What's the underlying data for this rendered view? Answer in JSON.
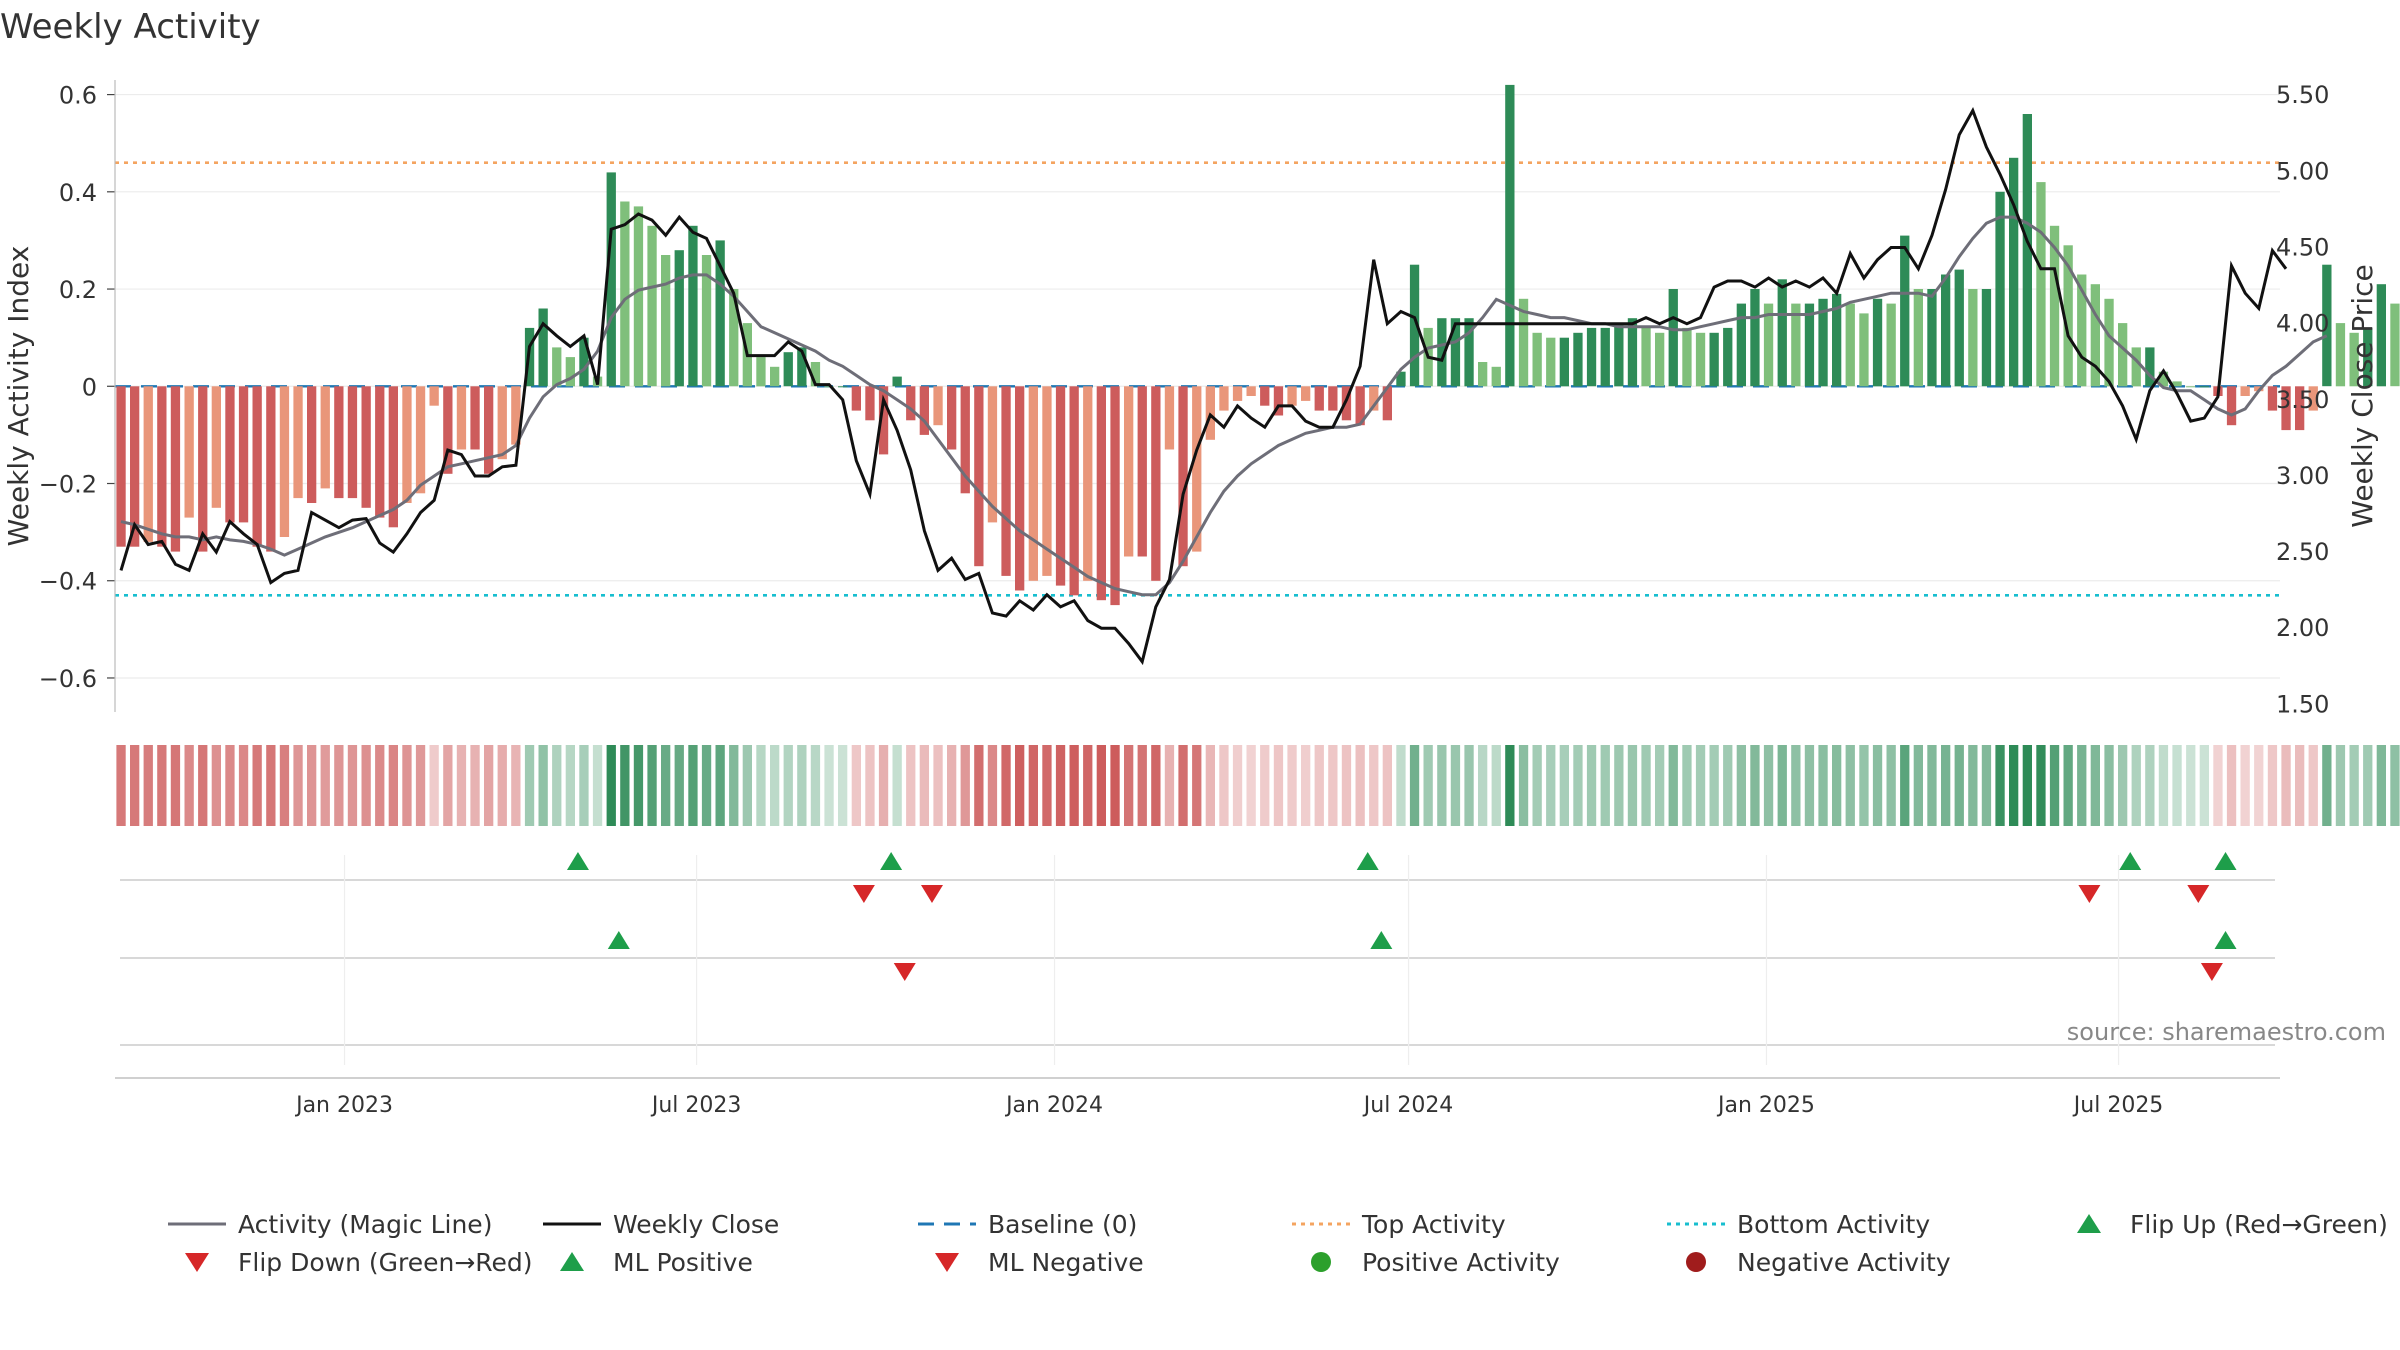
{
  "title": "Weekly Activity",
  "source_note": "source: sharemaestro.com",
  "colors": {
    "strong_green": "#2e8b57",
    "light_green": "#7fbf7b",
    "strong_red": "#cd5c5c",
    "light_red": "#e9967a",
    "magic_line": "#6e6e78",
    "close_line": "#111111",
    "baseline": "#1f77b4",
    "top_line": "#f4a460",
    "bottom_line": "#17becf",
    "marker_up": "#1e9e4a",
    "marker_down": "#d62728",
    "positive_dot": "#2ca02c",
    "negative_dot": "#a01c1c"
  },
  "chart_data": {
    "type": "bar",
    "title": "Weekly Activity",
    "ylabel": "Weekly Activity Index",
    "y2label": "Weekly Close Price",
    "ylim": [
      -0.67,
      0.63
    ],
    "y2lim": [
      1.45,
      5.6
    ],
    "yticks": [
      -0.6,
      -0.4,
      -0.2,
      0,
      0.2,
      0.4,
      0.6
    ],
    "ytick_labels": [
      "−0.6",
      "−0.4",
      "−0.2",
      "0",
      "0.2",
      "0.4",
      "0.6"
    ],
    "y2ticks": [
      1.5,
      2.0,
      2.5,
      3.0,
      3.5,
      4.0,
      4.5,
      5.0,
      5.5
    ],
    "y2tick_labels": [
      "1.50",
      "2.00",
      "2.50",
      "3.00",
      "3.50",
      "4.00",
      "4.50",
      "5.00",
      "5.50"
    ],
    "x_start": "2022-09-05",
    "x_end": "2025-09-22",
    "xtick_dates": [
      "2023-01-01",
      "2023-07-01",
      "2024-01-01",
      "2024-07-01",
      "2025-01-01",
      "2025-07-01"
    ],
    "xtick_labels": [
      "Jan 2023",
      "Jul 2023",
      "Jan 2024",
      "Jul 2024",
      "Jan 2025",
      "Jul 2025"
    ],
    "top_activity": 0.46,
    "bottom_activity": -0.43,
    "baseline": 0,
    "activity_values": [
      -0.33,
      -0.33,
      -0.32,
      -0.33,
      -0.34,
      -0.27,
      -0.34,
      -0.25,
      -0.28,
      -0.28,
      -0.33,
      -0.34,
      -0.31,
      -0.23,
      -0.24,
      -0.21,
      -0.23,
      -0.23,
      -0.25,
      -0.27,
      -0.29,
      -0.24,
      -0.22,
      -0.04,
      -0.18,
      -0.13,
      -0.13,
      -0.18,
      -0.15,
      -0.12,
      0.12,
      0.16,
      0.08,
      0.06,
      0.1,
      0.02,
      0.44,
      0.38,
      0.37,
      0.33,
      0.27,
      0.28,
      0.33,
      0.27,
      0.3,
      0.2,
      0.13,
      0.06,
      0.04,
      0.07,
      0.08,
      0.05,
      0.0,
      0.0,
      -0.05,
      -0.07,
      -0.14,
      0.02,
      -0.07,
      -0.1,
      -0.08,
      -0.13,
      -0.22,
      -0.37,
      -0.28,
      -0.39,
      -0.42,
      -0.4,
      -0.39,
      -0.41,
      -0.43,
      -0.4,
      -0.44,
      -0.45,
      -0.35,
      -0.35,
      -0.4,
      -0.13,
      -0.37,
      -0.34,
      -0.11,
      -0.05,
      -0.03,
      -0.02,
      -0.04,
      -0.06,
      -0.04,
      -0.03,
      -0.05,
      -0.05,
      -0.07,
      -0.08,
      -0.05,
      -0.07,
      0.03,
      0.25,
      0.12,
      0.14,
      0.14,
      0.14,
      0.05,
      0.04,
      0.62,
      0.18,
      0.11,
      0.1,
      0.1,
      0.11,
      0.12,
      0.12,
      0.13,
      0.14,
      0.12,
      0.11,
      0.2,
      0.12,
      0.11,
      0.11,
      0.12,
      0.17,
      0.2,
      0.17,
      0.22,
      0.17,
      0.17,
      0.18,
      0.19,
      0.17,
      0.15,
      0.18,
      0.17,
      0.31,
      0.2,
      0.2,
      0.23,
      0.24,
      0.2,
      0.2,
      0.4,
      0.47,
      0.56,
      0.42,
      0.33,
      0.29,
      0.23,
      0.21,
      0.18,
      0.13,
      0.08,
      0.08,
      0.03,
      0.01,
      0.0,
      0.0,
      -0.02,
      -0.08,
      -0.02,
      -0.01,
      -0.05,
      -0.09,
      -0.09,
      -0.05,
      0.25,
      0.13,
      0.11,
      0.12,
      0.21,
      0.17
    ],
    "close_prices": [
      2.38,
      2.68,
      2.55,
      2.57,
      2.42,
      2.38,
      2.62,
      2.5,
      2.7,
      2.62,
      2.55,
      2.3,
      2.36,
      2.38,
      2.76,
      2.71,
      2.66,
      2.71,
      2.72,
      2.56,
      2.5,
      2.62,
      2.76,
      2.84,
      3.17,
      3.14,
      3.0,
      3.0,
      3.06,
      3.07,
      3.85,
      4.0,
      3.92,
      3.85,
      3.92,
      3.6,
      4.62,
      4.65,
      4.72,
      4.68,
      4.58,
      4.7,
      4.6,
      4.56,
      4.38,
      4.2,
      3.79,
      3.79,
      3.79,
      3.88,
      3.82,
      3.6,
      3.6,
      3.5,
      3.1,
      2.88,
      3.5,
      3.3,
      3.04,
      2.64,
      2.38,
      2.46,
      2.32,
      2.36,
      2.1,
      2.08,
      2.18,
      2.12,
      2.22,
      2.14,
      2.18,
      2.05,
      2.0,
      2.0,
      1.9,
      1.78,
      2.14,
      2.32,
      2.88,
      3.17,
      3.4,
      3.32,
      3.46,
      3.38,
      3.32,
      3.46,
      3.46,
      3.36,
      3.32,
      3.32,
      3.5,
      3.72,
      4.42,
      4.0,
      4.08,
      4.04,
      3.78,
      3.76,
      4.0,
      4.0,
      4.0,
      4.0,
      4.0,
      4.0,
      4.0,
      4.0,
      4.0,
      4.0,
      4.0,
      4.0,
      4.0,
      4.0,
      4.04,
      4.0,
      4.04,
      4.0,
      4.04,
      4.24,
      4.28,
      4.28,
      4.24,
      4.3,
      4.24,
      4.28,
      4.24,
      4.3,
      4.2,
      4.46,
      4.3,
      4.42,
      4.5,
      4.5,
      4.36,
      4.58,
      4.88,
      5.24,
      5.4,
      5.16,
      4.98,
      4.78,
      4.54,
      4.36,
      4.36,
      3.92,
      3.78,
      3.72,
      3.62,
      3.46,
      3.24,
      3.56,
      3.69,
      3.54,
      3.36,
      3.38,
      3.52,
      4.38,
      4.2,
      4.1,
      4.48,
      4.36
    ],
    "magic_line": [
      2.7,
      2.68,
      2.65,
      2.62,
      2.6,
      2.6,
      2.58,
      2.6,
      2.58,
      2.57,
      2.55,
      2.52,
      2.48,
      2.52,
      2.56,
      2.6,
      2.63,
      2.66,
      2.7,
      2.74,
      2.78,
      2.84,
      2.94,
      3.0,
      3.06,
      3.08,
      3.1,
      3.12,
      3.14,
      3.2,
      3.38,
      3.52,
      3.6,
      3.64,
      3.7,
      3.82,
      4.04,
      4.16,
      4.22,
      4.24,
      4.26,
      4.3,
      4.32,
      4.32,
      4.26,
      4.18,
      4.08,
      3.98,
      3.94,
      3.9,
      3.86,
      3.82,
      3.76,
      3.72,
      3.66,
      3.6,
      3.56,
      3.5,
      3.44,
      3.36,
      3.24,
      3.12,
      3.0,
      2.9,
      2.8,
      2.72,
      2.64,
      2.58,
      2.52,
      2.46,
      2.4,
      2.34,
      2.3,
      2.26,
      2.24,
      2.22,
      2.22,
      2.3,
      2.44,
      2.6,
      2.76,
      2.9,
      3.0,
      3.08,
      3.14,
      3.2,
      3.24,
      3.28,
      3.3,
      3.32,
      3.32,
      3.34,
      3.46,
      3.58,
      3.7,
      3.78,
      3.84,
      3.86,
      3.88,
      3.94,
      4.04,
      4.16,
      4.12,
      4.08,
      4.06,
      4.04,
      4.04,
      4.02,
      4.0,
      4.0,
      3.98,
      3.98,
      3.98,
      3.98,
      3.96,
      3.96,
      3.98,
      4.0,
      4.02,
      4.04,
      4.04,
      4.06,
      4.06,
      4.06,
      4.06,
      4.08,
      4.1,
      4.14,
      4.16,
      4.18,
      4.2,
      4.2,
      4.2,
      4.18,
      4.3,
      4.44,
      4.56,
      4.66,
      4.7,
      4.7,
      4.66,
      4.6,
      4.5,
      4.38,
      4.22,
      4.06,
      3.92,
      3.84,
      3.76,
      3.66,
      3.58,
      3.56,
      3.56,
      3.5,
      3.44,
      3.4,
      3.44,
      3.56,
      3.66,
      3.72,
      3.8,
      3.88,
      3.92
    ],
    "flip_up": [
      "2023-05-01",
      "2023-10-09",
      "2024-06-10",
      "2025-07-07",
      "2025-08-25"
    ],
    "flip_down": [
      "2023-09-25",
      "2023-10-30",
      "2025-06-16",
      "2025-08-11"
    ],
    "ml_positive": [
      "2023-05-22",
      "2024-06-17",
      "2025-08-25"
    ],
    "ml_negative": [
      "2023-10-16",
      "2025-08-18"
    ],
    "legend": [
      {
        "label": "Activity (Magic Line)",
        "kind": "line",
        "key": "magic_line"
      },
      {
        "label": "Weekly Close",
        "kind": "line",
        "key": "close_line"
      },
      {
        "label": "Baseline (0)",
        "kind": "dashed",
        "key": "baseline"
      },
      {
        "label": "Top Activity",
        "kind": "dotted",
        "key": "top_line"
      },
      {
        "label": "Bottom Activity",
        "kind": "dotted",
        "key": "bottom_line"
      },
      {
        "label": "Flip Up (Red→Green)",
        "kind": "tri-up",
        "key": "marker_up"
      },
      {
        "label": "Flip Down (Green→Red)",
        "kind": "tri-down",
        "key": "marker_down"
      },
      {
        "label": "ML Positive",
        "kind": "tri-up",
        "key": "marker_up"
      },
      {
        "label": "ML Negative",
        "kind": "tri-down",
        "key": "marker_down"
      },
      {
        "label": "Positive Activity",
        "kind": "dot",
        "key": "positive_dot"
      },
      {
        "label": "Negative Activity",
        "kind": "dot",
        "key": "negative_dot"
      }
    ]
  }
}
